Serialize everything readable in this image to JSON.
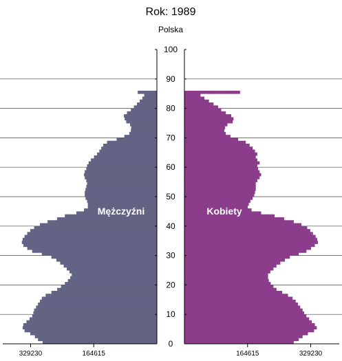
{
  "chart_data": {
    "type": "bar",
    "title": "Rok: 1989",
    "subtitle": "Polska",
    "left_label": "Mężczyźni",
    "right_label": "Kobiety",
    "y_axis": {
      "min": 0,
      "max": 100,
      "ticks": [
        0,
        10,
        20,
        30,
        40,
        50,
        60,
        70,
        80,
        90,
        100
      ]
    },
    "x_axis": {
      "max": 400000,
      "tick_values": [
        329230,
        164615
      ],
      "tick_labels": [
        "329230",
        "164615"
      ]
    },
    "colors": {
      "male": "#636384",
      "female": "#8b3d8b",
      "grid": "#444444"
    },
    "ages": [
      0,
      1,
      2,
      3,
      4,
      5,
      6,
      7,
      8,
      9,
      10,
      11,
      12,
      13,
      14,
      15,
      16,
      17,
      18,
      19,
      20,
      21,
      22,
      23,
      24,
      25,
      26,
      27,
      28,
      29,
      30,
      31,
      32,
      33,
      34,
      35,
      36,
      37,
      38,
      39,
      40,
      41,
      42,
      43,
      44,
      45,
      46,
      47,
      48,
      49,
      50,
      51,
      52,
      53,
      54,
      55,
      56,
      57,
      58,
      59,
      60,
      61,
      62,
      63,
      64,
      65,
      66,
      67,
      68,
      69,
      70,
      71,
      72,
      73,
      74,
      75,
      76,
      77,
      78,
      79,
      80,
      81,
      82,
      83,
      84,
      85
    ],
    "series": [
      {
        "name": "Mężczyźni",
        "values": [
          298000,
          310000,
          318000,
          330000,
          345000,
          350000,
          348000,
          340000,
          332000,
          325000,
          322000,
          320000,
          315000,
          310000,
          305000,
          300000,
          290000,
          275000,
          260000,
          250000,
          240000,
          232000,
          226000,
          222000,
          228000,
          235000,
          243000,
          252000,
          262000,
          275000,
          300000,
          325000,
          338000,
          348000,
          352000,
          350000,
          345000,
          338000,
          330000,
          320000,
          305000,
          285000,
          260000,
          240000,
          210000,
          190000,
          180000,
          180000,
          182000,
          186000,
          188000,
          188000,
          186000,
          184000,
          182000,
          184000,
          188000,
          190000,
          188000,
          184000,
          182000,
          178000,
          172000,
          164000,
          156000,
          150000,
          145000,
          140000,
          130000,
          105000,
          85000,
          72000,
          68000,
          67000,
          70000,
          80000,
          84000,
          86000,
          78000,
          68000,
          60000,
          52000,
          45000,
          38000,
          33000,
          50000
        ]
      },
      {
        "name": "Kobiety",
        "values": [
          285000,
          298000,
          308000,
          322000,
          338000,
          345000,
          340000,
          332000,
          325000,
          318000,
          312000,
          308000,
          302000,
          296000,
          290000,
          282000,
          270000,
          255000,
          240000,
          232000,
          225000,
          220000,
          218000,
          218000,
          224000,
          232000,
          240000,
          250000,
          262000,
          275000,
          298000,
          318000,
          330000,
          340000,
          348000,
          346000,
          342000,
          335000,
          328000,
          320000,
          305000,
          285000,
          260000,
          235000,
          200000,
          175000,
          165000,
          168000,
          172000,
          178000,
          182000,
          184000,
          186000,
          186000,
          186000,
          190000,
          196000,
          200000,
          196000,
          192000,
          190000,
          196000,
          190000,
          186000,
          190000,
          184000,
          178000,
          170000,
          160000,
          140000,
          120000,
          108000,
          104000,
          106000,
          112000,
          126000,
          128000,
          122000,
          108000,
          96000,
          88000,
          76000,
          64000,
          52000,
          42000,
          145000
        ]
      }
    ]
  }
}
